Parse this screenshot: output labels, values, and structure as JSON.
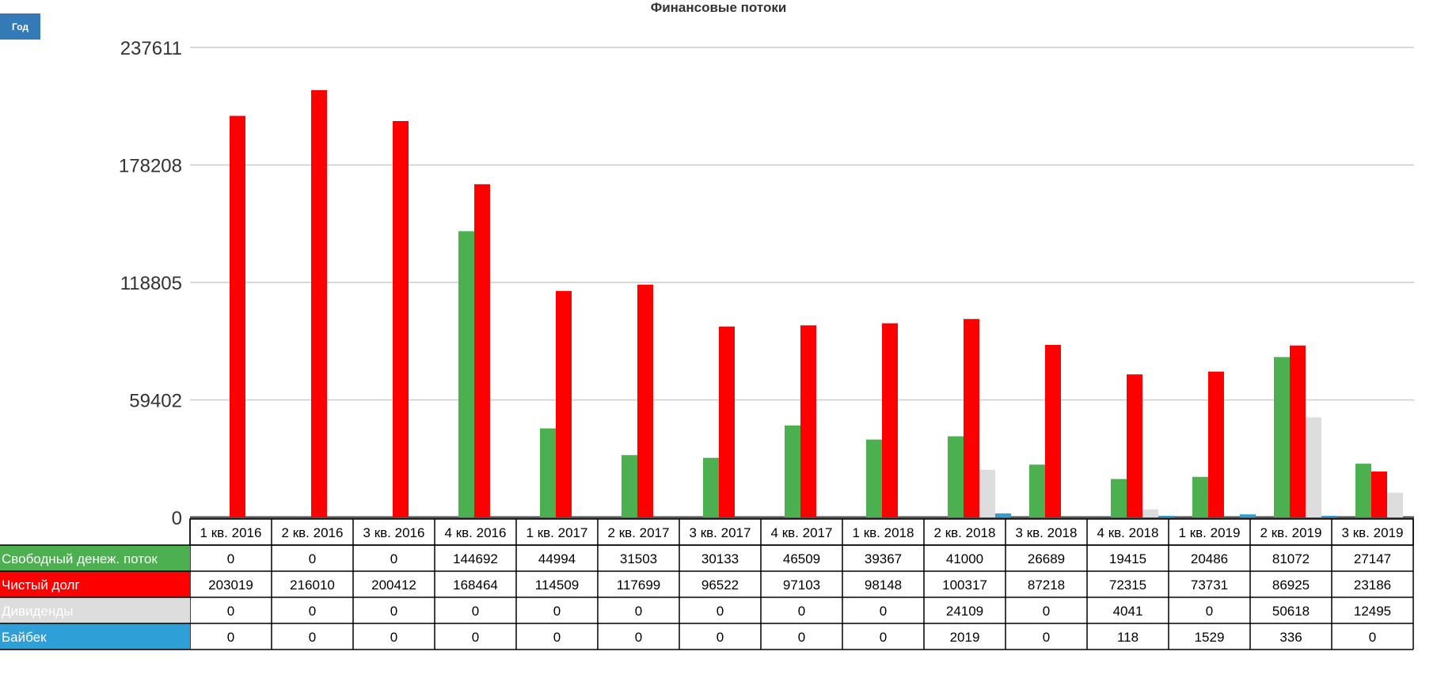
{
  "controls": {
    "period_button": "Год"
  },
  "chart_data": {
    "type": "bar",
    "title": "Финансовые потоки",
    "xlabel": "",
    "ylabel": "",
    "ylim": [
      0,
      237611
    ],
    "yticks": [
      0,
      59402,
      118805,
      178208,
      237611
    ],
    "grid": true,
    "legend": "table-below",
    "categories": [
      "1 кв. 2016",
      "2 кв. 2016",
      "3 кв. 2016",
      "4 кв. 2016",
      "1 кв. 2017",
      "2 кв. 2017",
      "3 кв. 2017",
      "4 кв. 2017",
      "1 кв. 2018",
      "2 кв. 2018",
      "3 кв. 2018",
      "4 кв. 2018",
      "1 кв. 2019",
      "2 кв. 2019",
      "3 кв. 2019"
    ],
    "series": [
      {
        "name": "Свободный денеж. поток",
        "color": "#4caf50",
        "values": [
          0,
          0,
          0,
          144692,
          44994,
          31503,
          30133,
          46509,
          39367,
          41000,
          26689,
          19415,
          20486,
          81072,
          27147
        ]
      },
      {
        "name": "Чистый долг",
        "color": "#ff0000",
        "values": [
          203019,
          216010,
          200412,
          168464,
          114509,
          117699,
          96522,
          97103,
          98148,
          100317,
          87218,
          72315,
          73731,
          86925,
          23186
        ]
      },
      {
        "name": "Дивиденды",
        "color": "#dddddd",
        "values": [
          0,
          0,
          0,
          0,
          0,
          0,
          0,
          0,
          0,
          24109,
          0,
          4041,
          0,
          50618,
          12495
        ]
      },
      {
        "name": "Байбек",
        "color": "#2f9fd8",
        "values": [
          0,
          0,
          0,
          0,
          0,
          0,
          0,
          0,
          0,
          2019,
          0,
          118,
          1529,
          336,
          0
        ]
      }
    ]
  }
}
